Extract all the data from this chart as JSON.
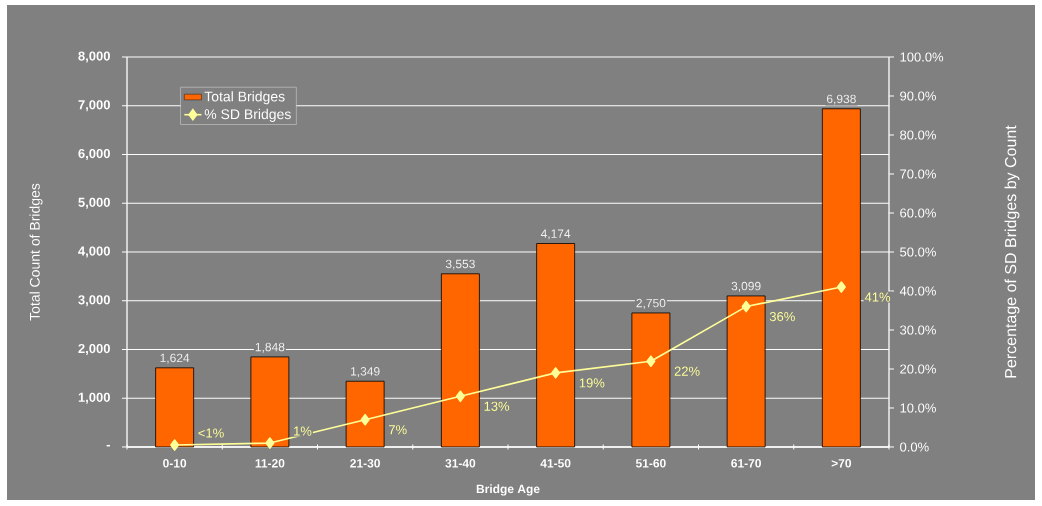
{
  "chart_data": {
    "type": "bar",
    "xlabel": "Bridge Age",
    "ylabel": "Total Count of Bridges",
    "y2label": "Percentage of SD Bridges by Count",
    "categories": [
      "0-10",
      "11-20",
      "21-30",
      "31-40",
      "41-50",
      "51-60",
      "61-70",
      ">70"
    ],
    "series": [
      {
        "name": "Total Bridges",
        "color": "#ff6600",
        "values": [
          1624,
          1848,
          1349,
          3553,
          4174,
          2750,
          3099,
          6938
        ],
        "value_labels": [
          "1,624",
          "1,848",
          "1,349",
          "3,553",
          "4,174",
          "2,750",
          "3,099",
          "6,938"
        ]
      },
      {
        "name": "% SD Bridges",
        "type": "line",
        "axis": "y2",
        "color": "#ffff99",
        "marker": "diamond",
        "line_style": "solid",
        "values": [
          0.5,
          1,
          7,
          13,
          19,
          22,
          36,
          41
        ],
        "value_labels": [
          "<1%",
          "1%",
          "7%",
          "13%",
          "19%",
          "22%",
          "36%",
          "41%"
        ]
      }
    ],
    "ylim": [
      0,
      8000
    ],
    "yticks": [
      {
        "value": 0,
        "label": "-"
      },
      {
        "value": 1000,
        "label": "1,000"
      },
      {
        "value": 2000,
        "label": "2,000"
      },
      {
        "value": 3000,
        "label": "3,000"
      },
      {
        "value": 4000,
        "label": "4,000"
      },
      {
        "value": 5000,
        "label": "5,000"
      },
      {
        "value": 6000,
        "label": "6,000"
      },
      {
        "value": 7000,
        "label": "7,000"
      },
      {
        "value": 8000,
        "label": "8,000"
      }
    ],
    "y2lim": [
      0,
      100
    ],
    "y2ticks": [
      {
        "value": 0,
        "label": "0.0%"
      },
      {
        "value": 10,
        "label": "10.0%"
      },
      {
        "value": 20,
        "label": "20.0%"
      },
      {
        "value": 30,
        "label": "30.0%"
      },
      {
        "value": 40,
        "label": "40.0%"
      },
      {
        "value": 50,
        "label": "50.0%"
      },
      {
        "value": 60,
        "label": "60.0%"
      },
      {
        "value": 70,
        "label": "70.0%"
      },
      {
        "value": 80,
        "label": "80.0%"
      },
      {
        "value": 90,
        "label": "90.0%"
      },
      {
        "value": 100,
        "label": "100.0%"
      }
    ],
    "grid": "y",
    "legend": "top left"
  }
}
